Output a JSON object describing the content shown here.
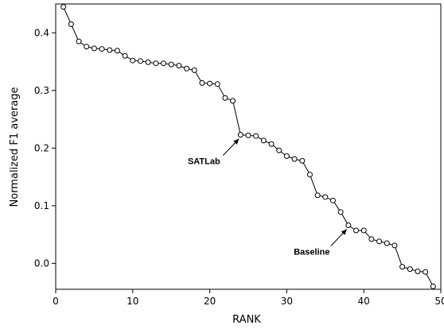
{
  "chart_data": {
    "type": "line",
    "title": "",
    "xlabel": "RANK",
    "ylabel": "Normalized F1 average",
    "xlim": [
      0,
      50
    ],
    "ylim": [
      -0.045,
      0.45
    ],
    "xticks": [
      0,
      10,
      20,
      30,
      40,
      50
    ],
    "yticks": [
      0.0,
      0.1,
      0.2,
      0.3,
      0.4
    ],
    "ytick_labels": [
      "0.0",
      "0.1",
      "0.2",
      "0.3",
      "0.4"
    ],
    "grid": false,
    "legend": "none",
    "marker": "open-circle",
    "line_color": "#000000",
    "series": [
      {
        "x": [
          1,
          2,
          3,
          4,
          5,
          6,
          7,
          8,
          9,
          10,
          11,
          12,
          13,
          14,
          15,
          16,
          17,
          18,
          19,
          20,
          21,
          22,
          23,
          24,
          25,
          26,
          27,
          28,
          29,
          30,
          31,
          32,
          33,
          34,
          35,
          36,
          37,
          38,
          39,
          40,
          41,
          42,
          43,
          44,
          45,
          46,
          47,
          48,
          49
        ],
        "values": [
          0.445,
          0.415,
          0.385,
          0.376,
          0.373,
          0.372,
          0.37,
          0.369,
          0.36,
          0.352,
          0.351,
          0.349,
          0.347,
          0.347,
          0.345,
          0.343,
          0.338,
          0.335,
          0.313,
          0.312,
          0.311,
          0.287,
          0.282,
          0.223,
          0.222,
          0.221,
          0.213,
          0.207,
          0.196,
          0.186,
          0.181,
          0.178,
          0.154,
          0.118,
          0.115,
          0.109,
          0.089,
          0.066,
          0.057,
          0.057,
          0.042,
          0.038,
          0.035,
          0.031,
          -0.006,
          -0.01,
          -0.014,
          -0.015,
          -0.04
        ]
      }
    ],
    "annotations": [
      {
        "text": "SATLab",
        "x": 24,
        "y": 0.223
      },
      {
        "text": "Baseline",
        "x": 38,
        "y": 0.066
      }
    ]
  }
}
